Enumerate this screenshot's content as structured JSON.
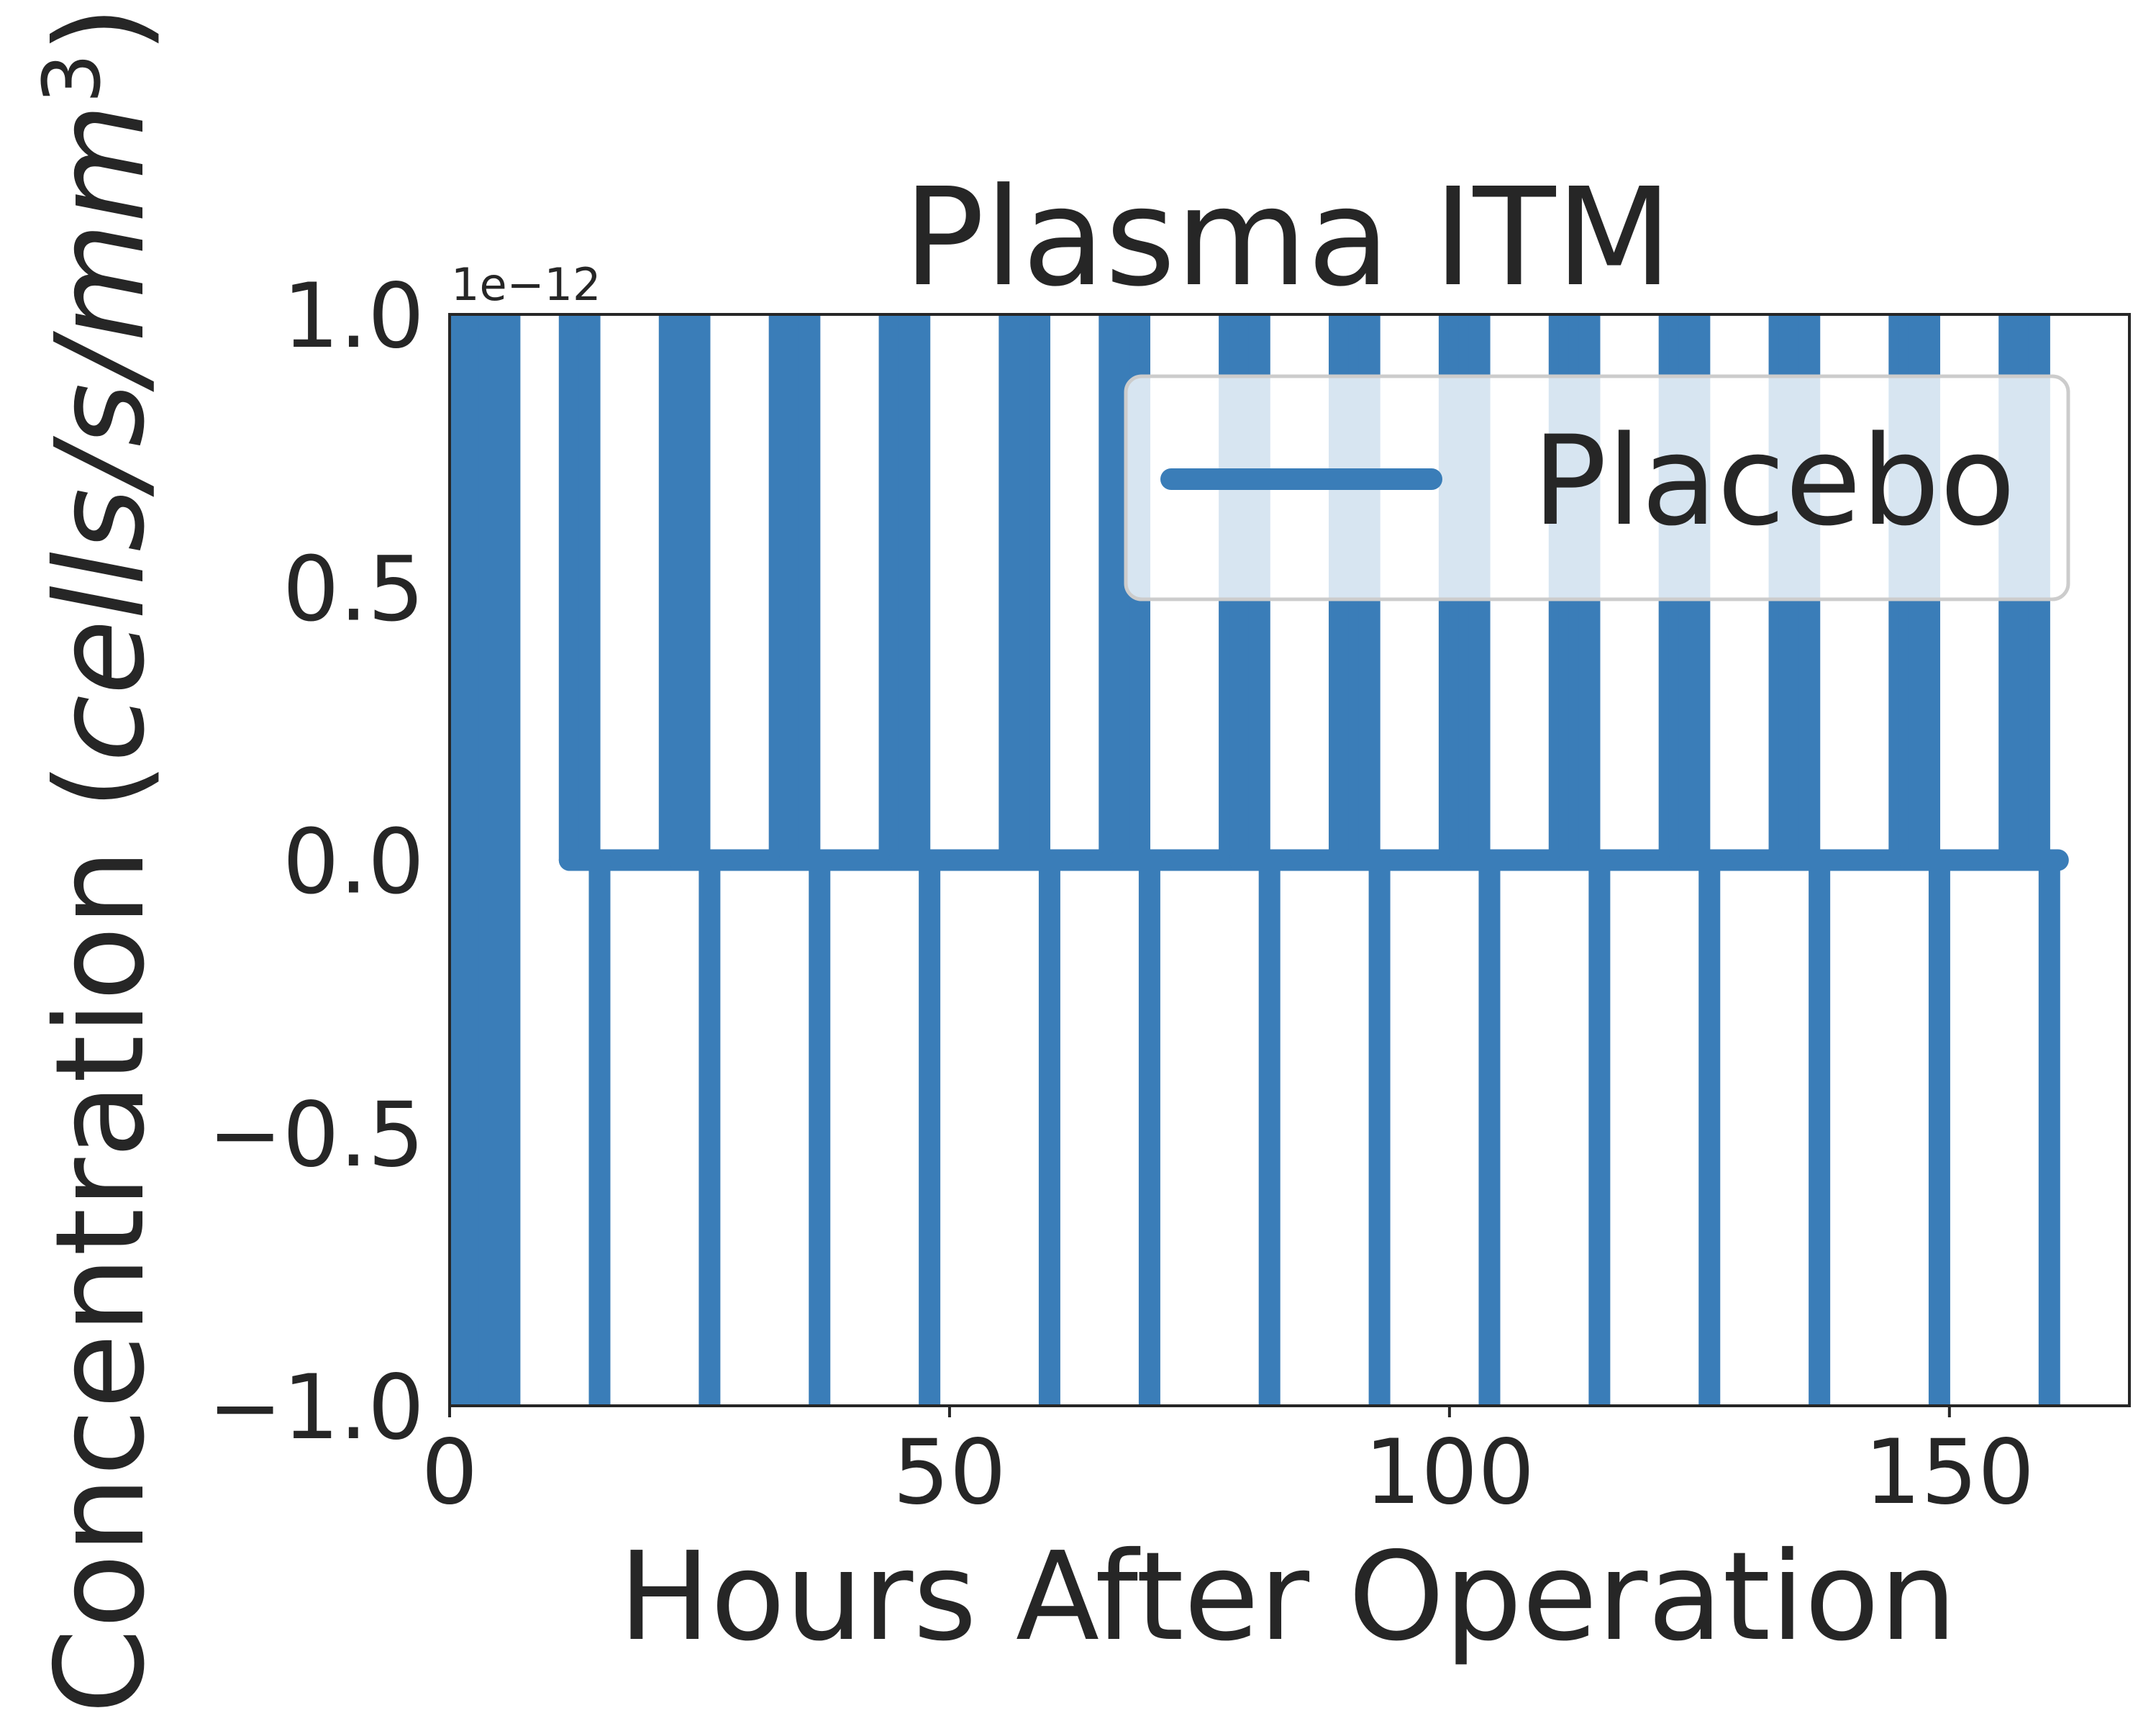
{
  "chart_data": {
    "type": "line",
    "title": "Plasma ITM",
    "xlabel": "Hours After Operation",
    "ylabel": "Concentration (cells/s/mm³)",
    "ylabel_parts": {
      "pre": "Concentration (",
      "italic": "cells/s/mm",
      "sup": "3",
      "post": ")"
    },
    "y_offset_label": "1e−12",
    "xlim": [
      0,
      168
    ],
    "ylim": [
      -1.0,
      1.0
    ],
    "x_ticks": [
      0,
      50,
      100,
      150
    ],
    "x_tick_labels": [
      "0",
      "50",
      "100",
      "150"
    ],
    "y_ticks": [
      -1.0,
      -0.5,
      0.0,
      0.5,
      1.0
    ],
    "y_tick_labels": [
      "−1.0",
      "−0.5",
      "0.0",
      "0.5",
      "1.0"
    ],
    "grid": false,
    "legend_position": "upper right",
    "series": [
      {
        "name": "Placebo",
        "color": "#3a7db8",
        "x": [
          0,
          2,
          4,
          6,
          12,
          13,
          14,
          15,
          22,
          23,
          24,
          25,
          26,
          33,
          34,
          35,
          36,
          37,
          44,
          45,
          46,
          47,
          48,
          56,
          57,
          58,
          59,
          60,
          66,
          67,
          68,
          69,
          70,
          78,
          79,
          80,
          81,
          82,
          89,
          90,
          91,
          92,
          93,
          100,
          101,
          102,
          103,
          104,
          111,
          112,
          113,
          114,
          115,
          122,
          123,
          124,
          125,
          126,
          133,
          134,
          135,
          136,
          137,
          145,
          146,
          147,
          148,
          149,
          156,
          157,
          158,
          159,
          160
        ],
        "pattern_note": ""
      }
    ],
    "legend": [
      "Placebo"
    ]
  }
}
